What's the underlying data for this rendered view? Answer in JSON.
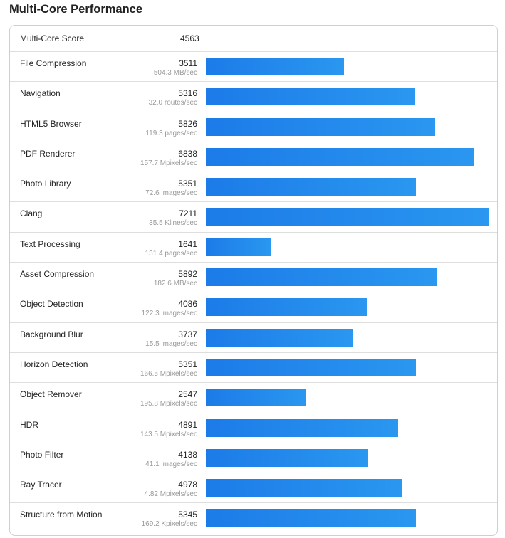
{
  "title": "Multi-Core Performance",
  "score": {
    "label": "Multi-Core Score",
    "value": "4563"
  },
  "chart_data": {
    "type": "bar",
    "orientation": "horizontal",
    "xlim": [
      0,
      7211
    ],
    "categories": [
      "File Compression",
      "Navigation",
      "HTML5 Browser",
      "PDF Renderer",
      "Photo Library",
      "Clang",
      "Text Processing",
      "Asset Compression",
      "Object Detection",
      "Background Blur",
      "Horizon Detection",
      "Object Remover",
      "HDR",
      "Photo Filter",
      "Ray Tracer",
      "Structure from Motion"
    ],
    "values": [
      3511,
      5316,
      5826,
      6838,
      5351,
      7211,
      1641,
      5892,
      4086,
      3737,
      5351,
      2547,
      4891,
      4138,
      4978,
      5345
    ],
    "value_labels": [
      "3511",
      "5316",
      "5826",
      "6838",
      "5351",
      "7211",
      "1641",
      "5892",
      "4086",
      "3737",
      "5351",
      "2547",
      "4891",
      "4138",
      "4978",
      "5345"
    ],
    "rates": [
      "504.3 MB/sec",
      "32.0 routes/sec",
      "119.3 pages/sec",
      "157.7 Mpixels/sec",
      "72.6 images/sec",
      "35.5 Klines/sec",
      "131.4 pages/sec",
      "182.6 MB/sec",
      "122.3 images/sec",
      "15.5 images/sec",
      "166.5 Mpixels/sec",
      "195.8 Mpixels/sec",
      "143.5 Mpixels/sec",
      "41.1 images/sec",
      "4.82 Mpixels/sec",
      "169.2 Kpixels/sec"
    ],
    "bar_color": "#1c7be8"
  }
}
